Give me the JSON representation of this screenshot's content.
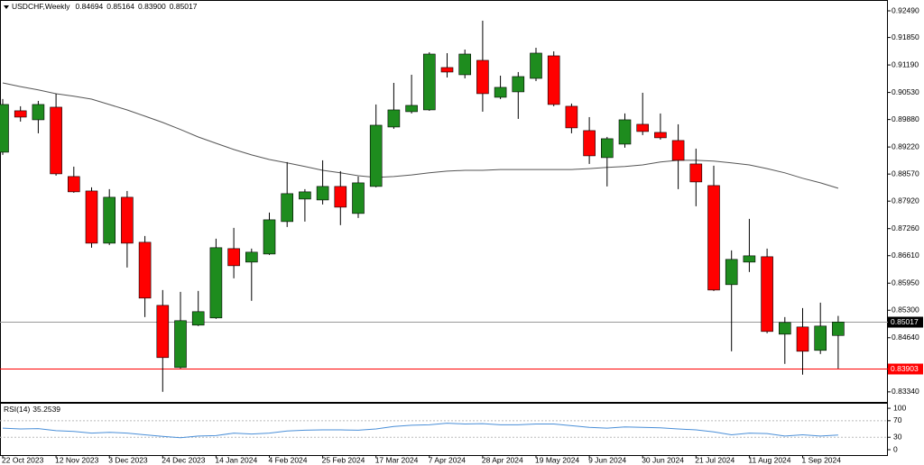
{
  "chart_data": [
    {
      "type": "candlestick",
      "title": "USDCHF,Weekly",
      "header_values": [
        "0.84694",
        "0.85164",
        "0.83900",
        "0.85017"
      ],
      "categories": [
        "22 Oct 2023",
        null,
        null,
        "12 Nov 2023",
        null,
        null,
        "3 Dec 2023",
        null,
        null,
        "24 Dec 2023",
        null,
        null,
        "14 Jan 2024",
        null,
        null,
        "4 Feb 2024",
        null,
        null,
        "25 Feb 2024",
        null,
        null,
        "17 Mar 2024",
        null,
        null,
        "7 Apr 2024",
        null,
        null,
        "28 Apr 2024",
        null,
        null,
        "19 May 2024",
        null,
        null,
        "9 Jun 2024",
        null,
        null,
        "30 Jun 2024",
        null,
        null,
        "21 Jul 2024",
        null,
        null,
        "11 Aug 2024",
        null,
        null,
        "1 Sep 2024",
        null,
        null
      ],
      "open": [
        0.89095,
        0.9009,
        0.89873,
        0.90176,
        0.88511,
        0.88164,
        0.8691,
        0.88013,
        0.86932,
        0.85417,
        0.83925,
        0.84942,
        0.85115,
        0.8678,
        0.86456,
        0.8665,
        0.87429,
        0.8797,
        0.87948,
        0.88273,
        0.87624,
        0.88273,
        0.897,
        0.90068,
        0.90111,
        0.91128,
        0.90955,
        0.91301,
        0.90414,
        0.90544,
        0.90868,
        0.91409,
        0.90198,
        0.89614,
        0.88965,
        0.89289,
        0.89765,
        0.8957,
        0.89376,
        0.88813,
        0.88294,
        0.85915,
        0.86456,
        0.86585,
        0.84725,
        0.84898,
        0.84336,
        0.84694
      ],
      "high": [
        0.90371,
        0.90198,
        0.90327,
        0.90501,
        0.88748,
        0.88251,
        0.88208,
        0.88164,
        0.87083,
        0.85785,
        0.85742,
        0.85764,
        0.87018,
        0.87278,
        0.8678,
        0.87645,
        0.88857,
        0.88208,
        0.889,
        0.8864,
        0.88511,
        0.90241,
        0.9076,
        0.90955,
        0.91496,
        0.91474,
        0.9156,
        0.92253,
        0.90933,
        0.9102,
        0.91604,
        0.91517,
        0.90263,
        0.89938,
        0.89462,
        0.90025,
        0.90522,
        0.90025,
        0.89765,
        0.89181,
        0.8877,
        0.86737,
        0.87494,
        0.8678,
        0.85136,
        0.85353,
        0.85482,
        0.85164
      ],
      "low": [
        0.8903,
        0.8983,
        0.89549,
        0.88532,
        0.88121,
        0.86802,
        0.86867,
        0.86326,
        0.85136,
        0.83341,
        0.83903,
        0.8492,
        0.85093,
        0.86066,
        0.85526,
        0.86629,
        0.87299,
        0.87429,
        0.8784,
        0.87343,
        0.87516,
        0.88251,
        0.89657,
        0.90025,
        0.9009,
        0.9089,
        0.90868,
        0.90068,
        0.90371,
        0.89895,
        0.90803,
        0.90198,
        0.89549,
        0.88813,
        0.88273,
        0.89203,
        0.89506,
        0.89397,
        0.88208,
        0.87797,
        0.85764,
        0.84314,
        0.86218,
        0.84747,
        0.84012,
        0.83752,
        0.84249,
        0.839
      ],
      "close": [
        0.90241,
        0.89938,
        0.90241,
        0.88575,
        0.88143,
        0.8691,
        0.88013,
        0.8691,
        0.85591,
        0.84163,
        0.8505,
        0.85266,
        0.86802,
        0.86369,
        0.86694,
        0.87472,
        0.881,
        0.88143,
        0.88273,
        0.87775,
        0.88359,
        0.89743,
        0.90111,
        0.90219,
        0.91452,
        0.9102,
        0.91452,
        0.90501,
        0.90652,
        0.90911,
        0.91474,
        0.90241,
        0.89679,
        0.89008,
        0.89419,
        0.89873,
        0.89592,
        0.89441,
        0.889,
        0.88381,
        0.85785,
        0.86521,
        0.86607,
        0.8479,
        0.85007,
        0.84314,
        0.8492,
        0.85017
      ],
      "up_color": "#1e8c1e",
      "down_color": "#ff0000",
      "overlay": {
        "color": "#555555",
        "values": [
          0.9076,
          0.9067,
          0.9059,
          0.905,
          0.9044,
          0.9037,
          0.9024,
          0.9011,
          0.8996,
          0.8981,
          0.8964,
          0.8946,
          0.8931,
          0.8916,
          0.8903,
          0.8892,
          0.8884,
          0.8875,
          0.8866,
          0.886,
          0.8853,
          0.8849,
          0.8851,
          0.8855,
          0.886,
          0.8864,
          0.8866,
          0.8866,
          0.8868,
          0.8868,
          0.8868,
          0.8868,
          0.8868,
          0.887,
          0.8873,
          0.8875,
          0.8879,
          0.8886,
          0.889,
          0.889,
          0.8888,
          0.8884,
          0.8879,
          0.887,
          0.886,
          0.8847,
          0.8836,
          0.8823
        ]
      },
      "hlines": [
        {
          "value": 0.85017,
          "color": "#999999",
          "box": "#000000"
        },
        {
          "value": 0.83903,
          "color": "#ff0000",
          "box": "#ff0000"
        }
      ],
      "ylim": [
        0.8312,
        0.9275
      ],
      "yticks": [
        {
          "value": 0.9249,
          "label": "0.92490"
        },
        {
          "value": 0.9185,
          "label": "0.91850"
        },
        {
          "value": 0.9119,
          "label": "0.91190"
        },
        {
          "value": 0.9053,
          "label": "0.90530"
        },
        {
          "value": 0.8988,
          "label": "0.89880"
        },
        {
          "value": 0.8922,
          "label": "0.89220"
        },
        {
          "value": 0.8857,
          "label": "0.88570"
        },
        {
          "value": 0.8792,
          "label": "0.87920"
        },
        {
          "value": 0.8726,
          "label": "0.87260"
        },
        {
          "value": 0.8661,
          "label": "0.86610"
        },
        {
          "value": 0.8595,
          "label": "0.85950"
        },
        {
          "value": 0.853,
          "label": "0.85300"
        },
        {
          "value": 0.8464,
          "label": "0.84640"
        },
        {
          "value": 0.8334,
          "label": "0.83340"
        }
      ]
    },
    {
      "type": "line",
      "name": "RSI(14)",
      "color": "#4a8fd8",
      "values": [
        52,
        50,
        51,
        46,
        44,
        40,
        42,
        40,
        36,
        32,
        29,
        33,
        34,
        40,
        38,
        40,
        45,
        47,
        48,
        48,
        47,
        50,
        56,
        59,
        60,
        64,
        62,
        63,
        60,
        60,
        62,
        62,
        58,
        54,
        52,
        55,
        54,
        53,
        50,
        48,
        43,
        36,
        40,
        39,
        33,
        36,
        33,
        35.2539
      ],
      "levels": [
        70,
        30
      ],
      "ylim": [
        -13,
        111
      ],
      "yticks": [
        100,
        70,
        30,
        0
      ]
    }
  ]
}
